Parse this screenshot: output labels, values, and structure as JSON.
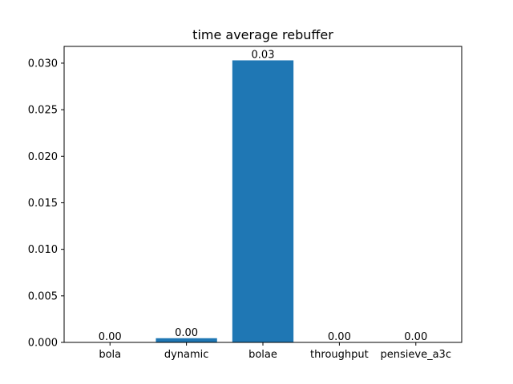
{
  "chart_data": {
    "type": "bar",
    "title": "time average rebuffer",
    "xlabel": "",
    "ylabel": "",
    "categories": [
      "bola",
      "dynamic",
      "bolae",
      "throughput",
      "pensieve_a3c"
    ],
    "values": [
      0.0,
      0.00045,
      0.0303,
      0.0,
      0.0
    ],
    "data_labels": [
      "0.00",
      "0.00",
      "0.03",
      "0.00",
      "0.00"
    ],
    "ylim": [
      0,
      0.0318
    ],
    "yticks": [
      0.0,
      0.005,
      0.01,
      0.015,
      0.02,
      0.025,
      0.03
    ],
    "ytick_labels": [
      "0.000",
      "0.005",
      "0.010",
      "0.015",
      "0.020",
      "0.025",
      "0.030"
    ],
    "grid": false,
    "legend": "none",
    "bar_color": "#1f77b4"
  }
}
